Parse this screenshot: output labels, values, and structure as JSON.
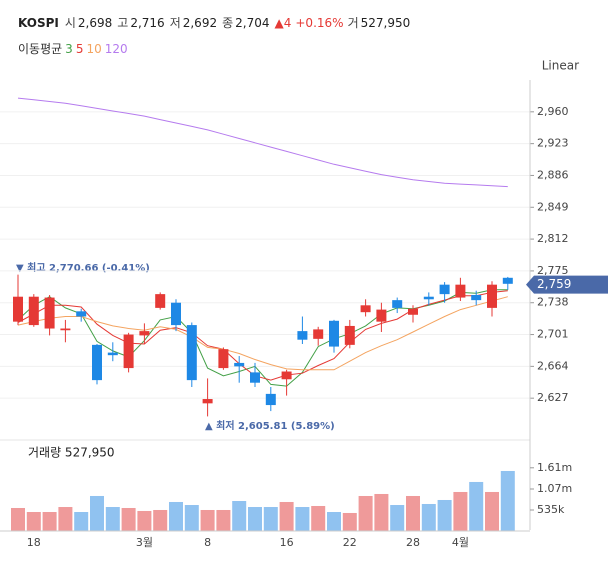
{
  "chart_data": {
    "type": "candlestick",
    "header": {
      "name": "KOSPI",
      "items": [
        {
          "key": "시",
          "value": "2,698"
        },
        {
          "key": "고",
          "value": "2,716"
        },
        {
          "key": "저",
          "value": "2,692"
        },
        {
          "key": "종",
          "value": "2,704"
        }
      ],
      "change": "▲4",
      "change_pct": "+0.16%",
      "volume_key": "거",
      "volume_value": "527,950"
    },
    "ma_title": "이동평균",
    "scale_label": "Linear",
    "up_color": "#e53935",
    "down_color": "#1e88e5",
    "categories": [
      null,
      "18",
      null,
      null,
      null,
      null,
      null,
      null,
      "3월",
      null,
      null,
      null,
      "8",
      null,
      null,
      null,
      null,
      "16",
      null,
      null,
      null,
      "22",
      null,
      null,
      null,
      "28",
      null,
      null,
      "4월",
      null,
      null,
      null
    ],
    "open": [
      2716,
      2712,
      2708,
      2706,
      2728,
      2689,
      2680,
      2662,
      2700,
      2732,
      2738,
      2712,
      2621,
      2662,
      2668,
      2657,
      2632,
      2649,
      2705,
      2696,
      2717,
      2689,
      2727,
      2716,
      2741,
      2724,
      2745,
      2759,
      2744,
      2747,
      2732,
      2767
    ],
    "high": [
      2770.66,
      2748,
      2747,
      2718,
      2731,
      2690,
      2692,
      2703,
      2714,
      2750,
      2742,
      2715,
      2650,
      2686,
      2676,
      2668,
      2640,
      2660,
      2722,
      2710,
      2718,
      2718,
      2742,
      2738,
      2744,
      2735,
      2750,
      2762,
      2767,
      2752,
      2763,
      2768
    ],
    "low": [
      2712,
      2710,
      2700,
      2692,
      2716,
      2643,
      2670,
      2657,
      2690,
      2730,
      2705,
      2640,
      2605.81,
      2660,
      2645,
      2640,
      2612,
      2630,
      2690,
      2688,
      2680,
      2685,
      2722,
      2704,
      2726,
      2715,
      2735,
      2738,
      2740,
      2735,
      2722,
      2753
    ],
    "close": [
      2745,
      2745,
      2744,
      2708,
      2722,
      2648,
      2677,
      2701,
      2705,
      2748,
      2712,
      2648,
      2626,
      2684,
      2664,
      2645,
      2619,
      2658,
      2695,
      2707,
      2687,
      2711,
      2735,
      2730,
      2732,
      2731,
      2742,
      2748,
      2759,
      2741,
      2759,
      2760
    ],
    "series": [
      {
        "name": "3",
        "color": "#43a047",
        "values": [
          2718,
          2735,
          2745,
          2732,
          2725,
          2693,
          2682,
          2675,
          2694,
          2718,
          2722,
          2703,
          2662,
          2653,
          2658,
          2664,
          2643,
          2641,
          2657,
          2687,
          2696,
          2702,
          2711,
          2725,
          2732,
          2731,
          2735,
          2740,
          2750,
          2749,
          2753,
          2753
        ]
      },
      {
        "name": "5",
        "color": "#e53935",
        "values": [
          2715,
          2725,
          2735,
          2735,
          2733,
          2713,
          2700,
          2691,
          2690,
          2706,
          2709,
          2703,
          2688,
          2684,
          2667,
          2653,
          2648,
          2654,
          2656,
          2665,
          2673,
          2692,
          2707,
          2714,
          2719,
          2730,
          2736,
          2741,
          2746,
          2746,
          2750,
          2752
        ]
      },
      {
        "name": "10",
        "color": "#f4a460",
        "values": [
          2712,
          2716,
          2720,
          2722,
          2722,
          2716,
          2711,
          2708,
          2706,
          2710,
          2707,
          2698,
          2686,
          2684,
          2679,
          2672,
          2666,
          2661,
          2660,
          2660,
          2660,
          2670,
          2680,
          2688,
          2695,
          2704,
          2713,
          2722,
          2730,
          2735,
          2740,
          2745
        ]
      },
      {
        "name": "120",
        "color": "#b57bee",
        "values": [
          2976,
          2974,
          2972,
          2970,
          2967,
          2964,
          2961,
          2958,
          2955,
          2951,
          2947,
          2943,
          2939,
          2934,
          2929,
          2924,
          2919,
          2914,
          2909,
          2904,
          2899,
          2895,
          2891,
          2887,
          2884,
          2881,
          2879,
          2877,
          2876,
          2875,
          2874,
          2873
        ]
      }
    ],
    "ylim": [
      2590,
      2997
    ],
    "yticks": [
      {
        "value": 2627,
        "label": "2,627"
      },
      {
        "value": 2664,
        "label": "2,664"
      },
      {
        "value": 2701,
        "label": "2,701"
      },
      {
        "value": 2738,
        "label": "2,738"
      },
      {
        "value": 2775,
        "label": "2,775"
      },
      {
        "value": 2812,
        "label": "2,812"
      },
      {
        "value": 2849,
        "label": "2,849"
      },
      {
        "value": 2886,
        "label": "2,886"
      },
      {
        "value": 2923,
        "label": "2,923"
      },
      {
        "value": 2960,
        "label": "2,960"
      }
    ],
    "grid": true,
    "current": {
      "value": 2759,
      "label": "2,759",
      "color": "#4a69a8"
    },
    "high_note": "▼ 최고 2,770.66 (-0.41%)",
    "low_note": "▲ 최저 2,605.81 (5.89%)",
    "volume": {
      "title": "거래량 527,950",
      "up_color": "#ef9a9a",
      "down_color": "#90c2f0",
      "values": [
        586000,
        484000,
        484000,
        611000,
        484000,
        892000,
        611000,
        586000,
        510000,
        535000,
        739000,
        662000,
        535000,
        535000,
        764000,
        611000,
        611000,
        739000,
        611000,
        637000,
        484000,
        459000,
        892000,
        943000,
        662000,
        892000,
        688000,
        790000,
        994000,
        1249000,
        994000,
        1529000
      ],
      "ylim": [
        0,
        2318000
      ],
      "yticks": [
        {
          "value": 535000,
          "label": "535k"
        },
        {
          "value": 1070000,
          "label": "1.07m"
        },
        {
          "value": 1610000,
          "label": "1.61m"
        }
      ]
    }
  }
}
